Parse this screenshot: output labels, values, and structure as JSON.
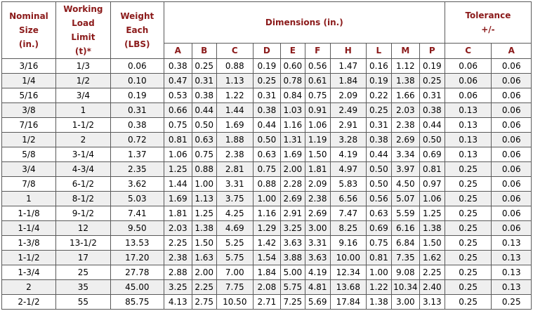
{
  "headers": {
    "nominal_size": [
      "Nominal",
      "Size",
      "(in.)"
    ],
    "working_load_limit": [
      "Working",
      "Load",
      "Limit",
      "(t)*"
    ],
    "weight_each": [
      "Weight",
      "Each",
      "(LBS)"
    ],
    "dimensions": "Dimensions (in.)",
    "tolerance": [
      "Tolerance",
      "+/-"
    ],
    "dimension_columns": [
      "A",
      "B",
      "C",
      "D",
      "E",
      "F",
      "H",
      "L",
      "M",
      "P"
    ],
    "tolerance_columns": [
      "C",
      "A"
    ]
  },
  "rows": [
    [
      "3/16",
      "1/3",
      "0.06",
      "0.38",
      "0.25",
      "0.88",
      "0.19",
      "0.60",
      "0.56",
      "1.47",
      "0.16",
      "1.12",
      "0.19",
      "0.06",
      "0.06"
    ],
    [
      "1/4",
      "1/2",
      "0.10",
      "0.47",
      "0.31",
      "1.13",
      "0.25",
      "0.78",
      "0.61",
      "1.84",
      "0.19",
      "1.38",
      "0.25",
      "0.06",
      "0.06"
    ],
    [
      "5/16",
      "3/4",
      "0.19",
      "0.53",
      "0.38",
      "1.22",
      "0.31",
      "0.84",
      "0.75",
      "2.09",
      "0.22",
      "1.66",
      "0.31",
      "0.06",
      "0.06"
    ],
    [
      "3/8",
      "1",
      "0.31",
      "0.66",
      "0.44",
      "1.44",
      "0.38",
      "1.03",
      "0.91",
      "2.49",
      "0.25",
      "2.03",
      "0.38",
      "0.13",
      "0.06"
    ],
    [
      "7/16",
      "1-1/2",
      "0.38",
      "0.75",
      "0.50",
      "1.69",
      "0.44",
      "1.16",
      "1.06",
      "2.91",
      "0.31",
      "2.38",
      "0.44",
      "0.13",
      "0.06"
    ],
    [
      "1/2",
      "2",
      "0.72",
      "0.81",
      "0.63",
      "1.88",
      "0.50",
      "1.31",
      "1.19",
      "3.28",
      "0.38",
      "2.69",
      "0.50",
      "0.13",
      "0.06"
    ],
    [
      "5/8",
      "3-1/4",
      "1.37",
      "1.06",
      "0.75",
      "2.38",
      "0.63",
      "1.69",
      "1.50",
      "4.19",
      "0.44",
      "3.34",
      "0.69",
      "0.13",
      "0.06"
    ],
    [
      "3/4",
      "4-3/4",
      "2.35",
      "1.25",
      "0.88",
      "2.81",
      "0.75",
      "2.00",
      "1.81",
      "4.97",
      "0.50",
      "3.97",
      "0.81",
      "0.25",
      "0.06"
    ],
    [
      "7/8",
      "6-1/2",
      "3.62",
      "1.44",
      "1.00",
      "3.31",
      "0.88",
      "2.28",
      "2.09",
      "5.83",
      "0.50",
      "4.50",
      "0.97",
      "0.25",
      "0.06"
    ],
    [
      "1",
      "8-1/2",
      "5.03",
      "1.69",
      "1.13",
      "3.75",
      "1.00",
      "2.69",
      "2.38",
      "6.56",
      "0.56",
      "5.07",
      "1.06",
      "0.25",
      "0.06"
    ],
    [
      "1-1/8",
      "9-1/2",
      "7.41",
      "1.81",
      "1.25",
      "4.25",
      "1.16",
      "2.91",
      "2.69",
      "7.47",
      "0.63",
      "5.59",
      "1.25",
      "0.25",
      "0.06"
    ],
    [
      "1-1/4",
      "12",
      "9.50",
      "2.03",
      "1.38",
      "4.69",
      "1.29",
      "3.25",
      "3.00",
      "8.25",
      "0.69",
      "6.16",
      "1.38",
      "0.25",
      "0.06"
    ],
    [
      "1-3/8",
      "13-1/2",
      "13.53",
      "2.25",
      "1.50",
      "5.25",
      "1.42",
      "3.63",
      "3.31",
      "9.16",
      "0.75",
      "6.84",
      "1.50",
      "0.25",
      "0.13"
    ],
    [
      "1-1/2",
      "17",
      "17.20",
      "2.38",
      "1.63",
      "5.75",
      "1.54",
      "3.88",
      "3.63",
      "10.00",
      "0.81",
      "7.35",
      "1.62",
      "0.25",
      "0.13"
    ],
    [
      "1-3/4",
      "25",
      "27.78",
      "2.88",
      "2.00",
      "7.00",
      "1.84",
      "5.00",
      "4.19",
      "12.34",
      "1.00",
      "9.08",
      "2.25",
      "0.25",
      "0.13"
    ],
    [
      "2",
      "35",
      "45.00",
      "3.25",
      "2.25",
      "7.75",
      "2.08",
      "5.75",
      "4.81",
      "13.68",
      "1.22",
      "10.34",
      "2.40",
      "0.25",
      "0.13"
    ],
    [
      "2-1/2",
      "55",
      "85.75",
      "4.13",
      "2.75",
      "10.50",
      "2.71",
      "7.25",
      "5.69",
      "17.84",
      "1.38",
      "3.00",
      "3.13",
      "0.25",
      "0.25"
    ]
  ],
  "colors": {
    "header_text": "#8b1a1a",
    "row_alt": "#efefef",
    "border": "#5a5a5a"
  }
}
